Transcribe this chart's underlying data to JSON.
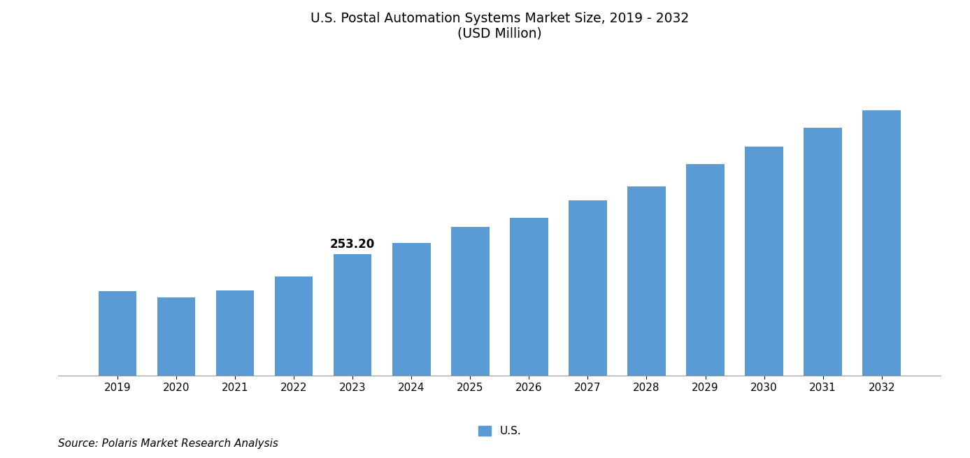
{
  "title_line1": "U.S. Postal Automation Systems Market Size, 2019 - 2032",
  "title_line2": "(USD Million)",
  "years": [
    2019,
    2020,
    2021,
    2022,
    2023,
    2024,
    2025,
    2026,
    2027,
    2028,
    2029,
    2030,
    2031,
    2032
  ],
  "values": [
    228.0,
    223.5,
    228.5,
    238.0,
    253.2,
    261.0,
    272.0,
    278.0,
    290.0,
    300.0,
    315.0,
    327.0,
    340.0,
    352.0
  ],
  "annotate_year": 2023,
  "annotate_value": "253.20",
  "bar_color": "#5b9bd5",
  "legend_label": "U.S.",
  "source_text": "Source: Polaris Market Research Analysis",
  "title_fontsize": 13.5,
  "source_fontsize": 11,
  "tick_fontsize": 11,
  "annot_fontsize": 12,
  "ylabel_min": 170,
  "ylabel_max": 390,
  "bar_width": 0.65
}
